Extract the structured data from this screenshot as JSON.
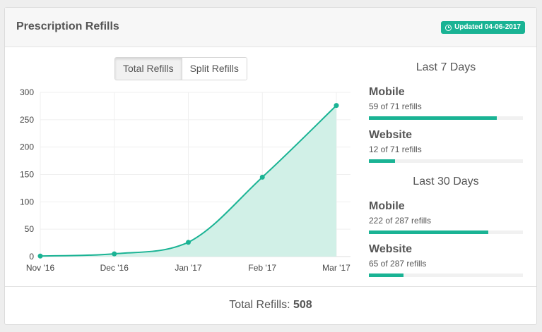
{
  "card": {
    "title": "Prescription Refills",
    "updated_badge": "Updated 04-06-2017",
    "badge_icon": "clock-icon"
  },
  "toggle": {
    "total_label": "Total Refills",
    "split_label": "Split Refills",
    "active": "total"
  },
  "colors": {
    "accent": "#1ab394",
    "area_fill": "#d1f0e7"
  },
  "chart_data": {
    "type": "area",
    "categories": [
      "Nov '16",
      "Dec '16",
      "Jan '17",
      "Feb '17",
      "Mar '17"
    ],
    "values": [
      1,
      5,
      26,
      145,
      276
    ],
    "y_ticks": [
      0,
      50,
      100,
      150,
      200,
      250,
      300
    ],
    "ylim": [
      0,
      300
    ],
    "grid": true,
    "title": "",
    "xlabel": "",
    "ylabel": ""
  },
  "last_7_days": {
    "title": "Last 7 Days",
    "items": [
      {
        "label": "Mobile",
        "sub": "59 of 71 refills",
        "value": 59,
        "total": 71
      },
      {
        "label": "Website",
        "sub": "12 of 71 refills",
        "value": 12,
        "total": 71
      }
    ]
  },
  "last_30_days": {
    "title": "Last 30 Days",
    "items": [
      {
        "label": "Mobile",
        "sub": "222 of 287 refills",
        "value": 222,
        "total": 287
      },
      {
        "label": "Website",
        "sub": "65 of 287 refills",
        "value": 65,
        "total": 287
      }
    ]
  },
  "footer": {
    "label": "Total Refills:",
    "value": "508"
  }
}
